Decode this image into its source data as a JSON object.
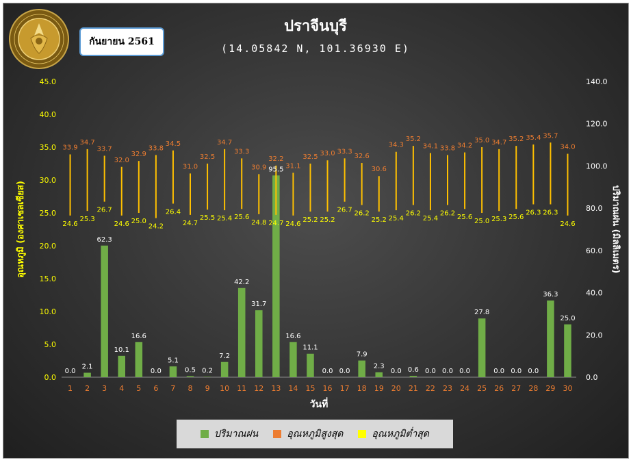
{
  "header": {
    "title": "ปราจีนบุรี",
    "subtitle": "(14.05842 N, 101.36930 E)",
    "date_label": "กันยายน 2561",
    "logo_text": "กรมอุตุนิยมวิทยา METEOROLOGICAL DEPARTMENT"
  },
  "legend": {
    "rain": "ปริมาณฝน",
    "tmax": "อุณหภูมิสูงสุด",
    "tmin": "อุณหภูมิต่ำสุด"
  },
  "colors": {
    "rain": "#70ad47",
    "tmax": "#ed7d31",
    "tmin": "#ffff00",
    "range_line": "#ffc000",
    "left_axis": "#ffff00",
    "right_axis": "#ffffff",
    "x_ticks": "#ed7d31",
    "max_labels": "#ed7d31",
    "min_labels": "#ffff00",
    "rain_labels": "#ffffff"
  },
  "chart_data": {
    "type": "bar",
    "x": [
      "1",
      "2",
      "3",
      "4",
      "5",
      "6",
      "7",
      "8",
      "9",
      "10",
      "11",
      "12",
      "13",
      "14",
      "15",
      "16",
      "17",
      "18",
      "19",
      "20",
      "21",
      "22",
      "23",
      "24",
      "25",
      "26",
      "27",
      "28",
      "29",
      "30"
    ],
    "xlabel": "วันที่",
    "ylabel_left": "อุณหภูมิ (องศาเซลเซียส)",
    "ylabel_right": "ปริมาณฝน (มิลลิเมตร)",
    "ylim_left": [
      0,
      45
    ],
    "ylim_right": [
      0,
      140
    ],
    "yticks_left": [
      "0.0",
      "5.0",
      "10.0",
      "15.0",
      "20.0",
      "25.0",
      "30.0",
      "35.0",
      "40.0",
      "45.0"
    ],
    "yticks_right": [
      "0.0",
      "20.0",
      "40.0",
      "60.0",
      "80.0",
      "100.0",
      "120.0",
      "140.0"
    ],
    "series": [
      {
        "name": "ปริมาณฝน",
        "type": "bar",
        "axis": "right",
        "values": [
          0.0,
          2.1,
          62.3,
          10.1,
          16.6,
          0.0,
          5.1,
          0.5,
          0.2,
          7.2,
          42.2,
          31.7,
          95.5,
          16.6,
          11.1,
          0.0,
          0.0,
          7.9,
          2.3,
          0.0,
          0.6,
          0.0,
          0.0,
          0.0,
          27.8,
          0.0,
          0.0,
          0.0,
          36.3,
          25.0
        ]
      },
      {
        "name": "อุณหภูมิสูงสุด",
        "type": "high-low",
        "axis": "left",
        "values": [
          33.9,
          34.7,
          33.7,
          32.0,
          32.9,
          33.8,
          34.5,
          31.0,
          32.5,
          34.7,
          33.3,
          30.9,
          32.2,
          31.1,
          32.5,
          33.0,
          33.3,
          32.6,
          30.6,
          34.3,
          35.2,
          34.1,
          33.8,
          34.2,
          35.0,
          34.7,
          35.2,
          35.4,
          35.7,
          34.0
        ]
      },
      {
        "name": "อุณหภูมิต่ำสุด",
        "type": "high-low",
        "axis": "left",
        "values": [
          24.6,
          25.3,
          26.7,
          24.6,
          25.0,
          24.2,
          26.4,
          24.7,
          25.5,
          25.4,
          25.6,
          24.8,
          24.7,
          24.6,
          25.2,
          25.2,
          26.7,
          26.2,
          25.2,
          25.4,
          26.2,
          25.4,
          26.2,
          25.6,
          25.0,
          25.3,
          25.6,
          26.3,
          26.3,
          24.6
        ]
      }
    ],
    "grid": false,
    "legend_position": "bottom"
  }
}
